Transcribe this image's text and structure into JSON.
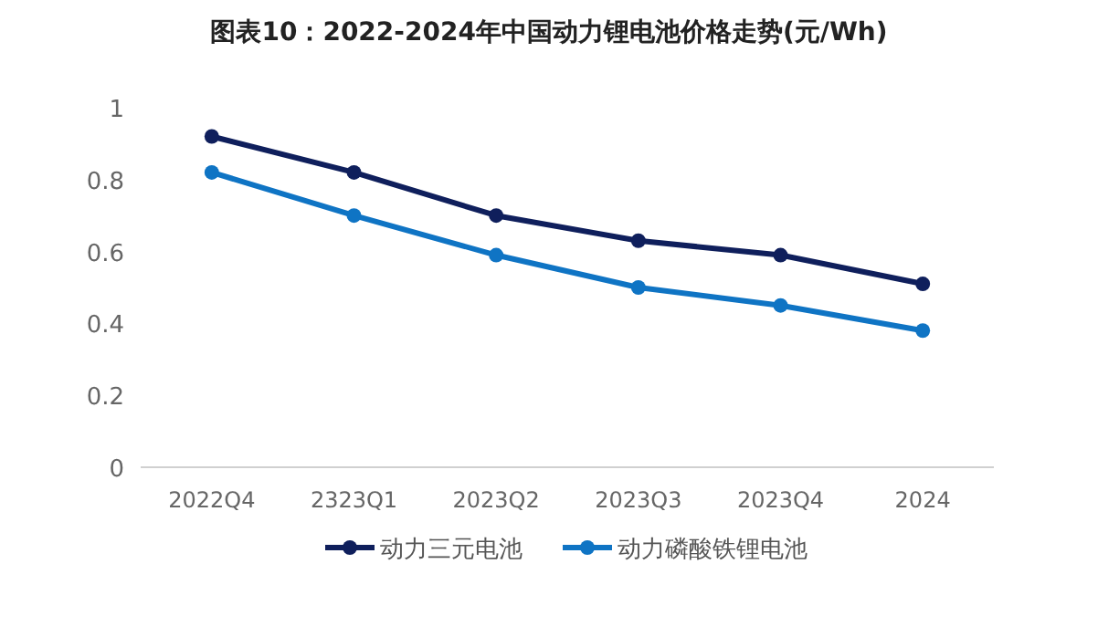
{
  "chart_data": {
    "type": "line",
    "title": "图表10：2022-2024年中国动力锂电池价格走势(元/Wh)",
    "categories": [
      "2022Q4",
      "2323Q1",
      "2023Q2",
      "2023Q3",
      "2023Q4",
      "2024"
    ],
    "series": [
      {
        "name": "动力三元电池",
        "color": "#0f1f5c",
        "values": [
          0.92,
          0.82,
          0.7,
          0.63,
          0.59,
          0.51
        ]
      },
      {
        "name": "动力磷酸铁锂电池",
        "color": "#0f74c4",
        "values": [
          0.82,
          0.7,
          0.59,
          0.5,
          0.45,
          0.38
        ]
      }
    ],
    "ylim": [
      0,
      1
    ],
    "yticks": [
      0,
      0.2,
      0.4,
      0.6,
      0.8,
      1
    ],
    "marker": "circle",
    "legend": "bottom",
    "grid": false
  }
}
